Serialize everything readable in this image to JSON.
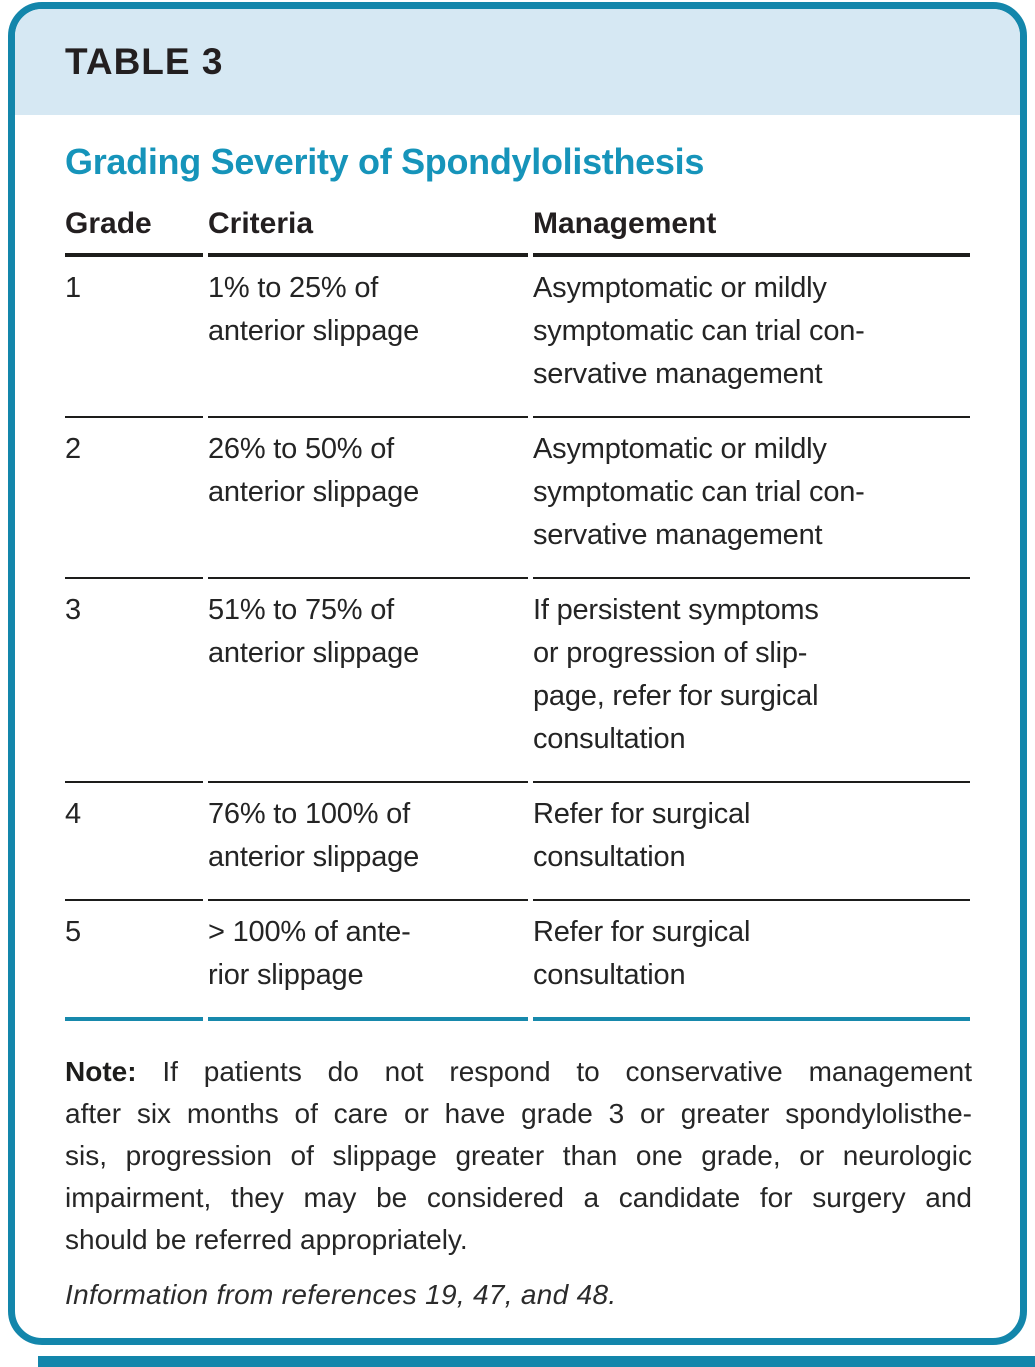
{
  "header": {
    "tag": "TABLE 3"
  },
  "table": {
    "title": "Grading Severity of Spondylolisthesis",
    "columns": [
      "Grade",
      "Criteria",
      "Management"
    ],
    "rows": [
      {
        "grade": "1",
        "criteria": [
          "1% to 25% of",
          "anterior slippage"
        ],
        "management": [
          "Asymptomatic or mildly",
          "symptomatic can trial con-",
          "servative management"
        ]
      },
      {
        "grade": "2",
        "criteria": [
          "26% to 50% of",
          "anterior slippage"
        ],
        "management": [
          "Asymptomatic or mildly",
          "symptomatic can trial con-",
          "servative management"
        ]
      },
      {
        "grade": "3",
        "criteria": [
          "51% to 75% of",
          "anterior slippage"
        ],
        "management": [
          "If persistent symptoms",
          "or progression of slip-",
          "page, refer for surgical",
          "consultation"
        ]
      },
      {
        "grade": "4",
        "criteria": [
          "76% to 100% of",
          "anterior slippage"
        ],
        "management": [
          "Refer for surgical",
          "consultation"
        ]
      },
      {
        "grade": "5",
        "criteria": [
          "> 100% of ante-",
          "rior slippage"
        ],
        "management": [
          "Refer for surgical",
          "consultation"
        ]
      }
    ]
  },
  "note": {
    "label": "Note:",
    "lines": [
      "If patients do not respond to conservative management",
      "after six months of care or have grade 3 or greater spondylolisthe-",
      "sis, progression of slippage greater than one grade, or neurologic",
      "impairment, they may be considered a candidate for surgery and",
      "should be referred appropriately."
    ]
  },
  "credit": "Information from references 19, 47, and 48.",
  "colors": {
    "accent_teal": "#1386ab",
    "header_band_blue": "#d6e8f3",
    "title_teal": "#1694ba",
    "rule_black": "#1d1d1b"
  }
}
